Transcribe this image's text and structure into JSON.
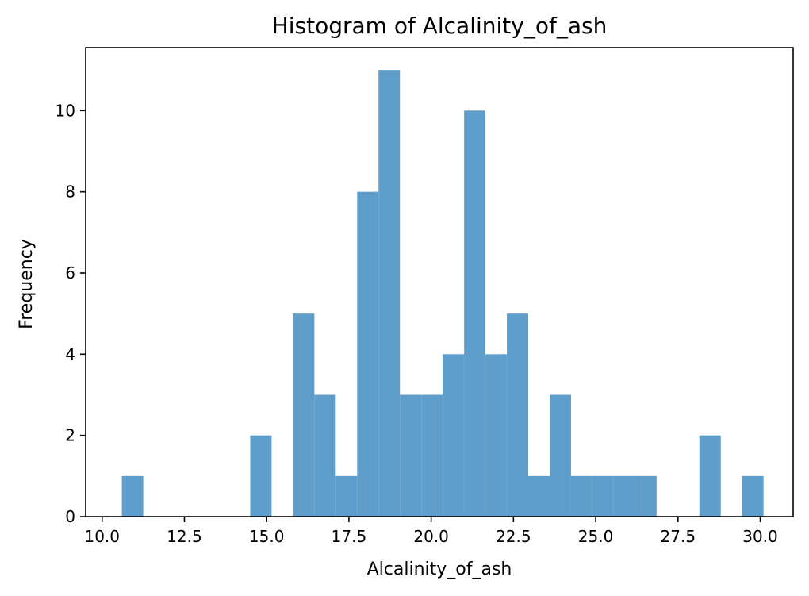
{
  "chart_data": {
    "type": "bar",
    "title": "Histogram of Alcalinity_of_ash",
    "xlabel": "Alcalinity_of_ash",
    "ylabel": "Frequency",
    "xlim": [
      9.5,
      31.0
    ],
    "ylim": [
      0,
      11.55
    ],
    "bin_width": 0.65,
    "bins": [
      {
        "x0": 10.6,
        "x1": 11.25,
        "count": 1
      },
      {
        "x0": 14.5,
        "x1": 15.15,
        "count": 2
      },
      {
        "x0": 15.8,
        "x1": 16.45,
        "count": 5
      },
      {
        "x0": 16.45,
        "x1": 17.1,
        "count": 3
      },
      {
        "x0": 17.1,
        "x1": 17.75,
        "count": 1
      },
      {
        "x0": 17.75,
        "x1": 18.4,
        "count": 8
      },
      {
        "x0": 18.4,
        "x1": 19.05,
        "count": 11
      },
      {
        "x0": 19.05,
        "x1": 19.7,
        "count": 3
      },
      {
        "x0": 19.7,
        "x1": 20.35,
        "count": 3
      },
      {
        "x0": 20.35,
        "x1": 21.0,
        "count": 4
      },
      {
        "x0": 21.0,
        "x1": 21.65,
        "count": 10
      },
      {
        "x0": 21.65,
        "x1": 22.3,
        "count": 4
      },
      {
        "x0": 22.3,
        "x1": 22.95,
        "count": 5
      },
      {
        "x0": 22.95,
        "x1": 23.6,
        "count": 1
      },
      {
        "x0": 23.6,
        "x1": 24.25,
        "count": 3
      },
      {
        "x0": 24.25,
        "x1": 24.9,
        "count": 1
      },
      {
        "x0": 24.9,
        "x1": 25.55,
        "count": 1
      },
      {
        "x0": 25.55,
        "x1": 26.2,
        "count": 1
      },
      {
        "x0": 26.2,
        "x1": 26.85,
        "count": 1
      },
      {
        "x0": 28.15,
        "x1": 28.8,
        "count": 2
      },
      {
        "x0": 29.45,
        "x1": 30.1,
        "count": 1
      }
    ],
    "x_ticks": [
      "10.0",
      "12.5",
      "15.0",
      "17.5",
      "20.0",
      "22.5",
      "25.0",
      "27.5",
      "30.0"
    ],
    "y_ticks": [
      "0",
      "2",
      "4",
      "6",
      "8",
      "10"
    ],
    "bar_color": "#5f9ecb",
    "grid": false,
    "legend": "none"
  }
}
